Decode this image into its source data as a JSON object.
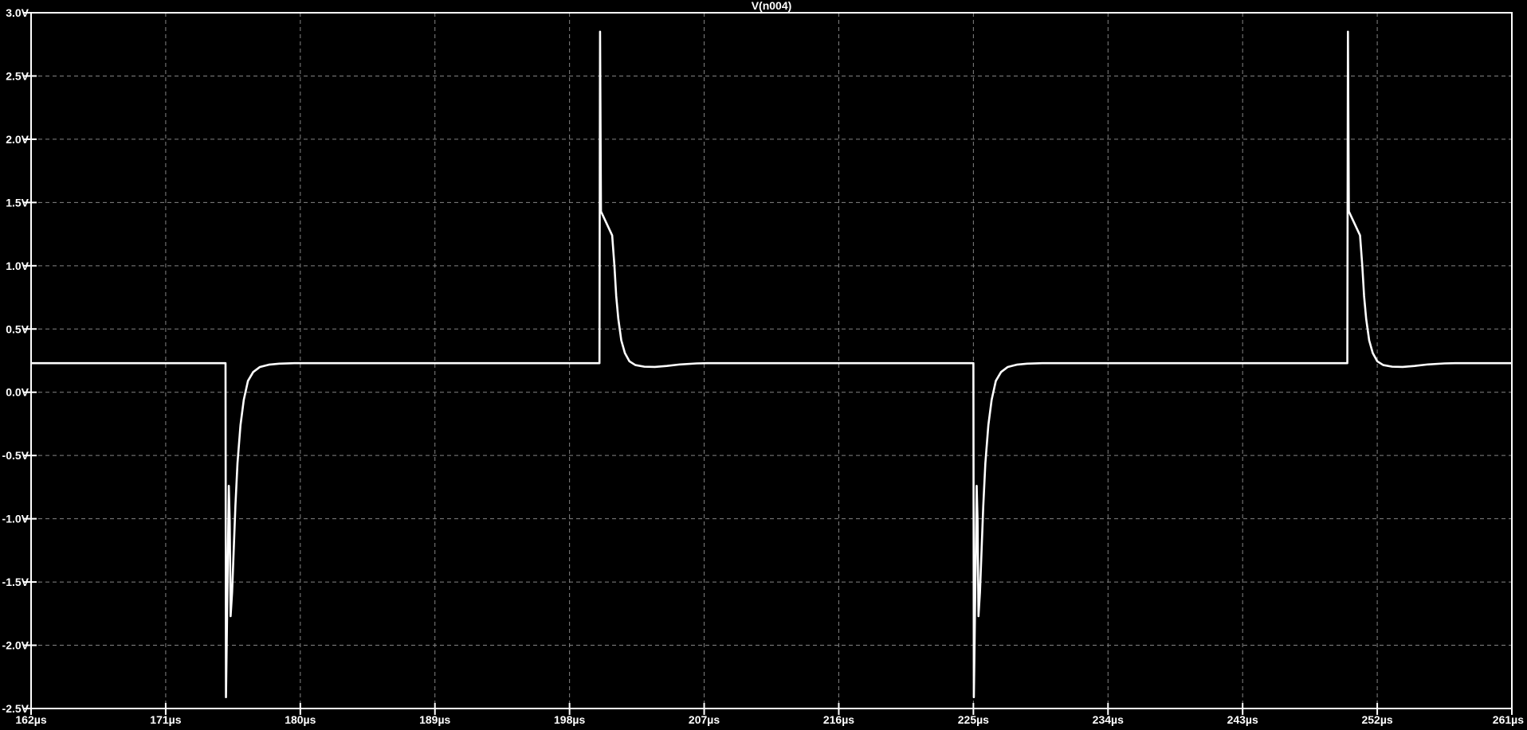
{
  "window": {
    "legend_title": "V(n004)"
  },
  "colors": {
    "background": "#000000",
    "border": "#ffffff",
    "grid": "#848484",
    "text": "#ffffff",
    "trace": "#ffffff"
  },
  "chart_data": {
    "type": "line",
    "title": "V(n004)",
    "grid": "dashed",
    "legend_position": "top-center",
    "x_unit": "µs",
    "y_unit": "V",
    "xlim": [
      162,
      261
    ],
    "ylim": [
      -2.5,
      3.0
    ],
    "x_tick_values": [
      162,
      171,
      180,
      189,
      198,
      207,
      216,
      225,
      234,
      243,
      252,
      261
    ],
    "x_tick_labels": [
      "162µs",
      "171µs",
      "180µs",
      "189µs",
      "198µs",
      "207µs",
      "216µs",
      "225µs",
      "234µs",
      "243µs",
      "252µs",
      "261µs"
    ],
    "y_tick_values": [
      3.0,
      2.5,
      2.0,
      1.5,
      1.0,
      0.5,
      0.0,
      -0.5,
      -1.0,
      -1.5,
      -2.0,
      -2.5
    ],
    "y_tick_labels": [
      "3.0V",
      "2.5V",
      "2.0V",
      "1.5V",
      "1.0V",
      "0.5V",
      "0.0V",
      "-0.5V",
      "-1.0V",
      "-1.5V",
      "-2.0V",
      "-2.5V"
    ],
    "baseline_v": 0.23,
    "negative_spike_times_us": [
      175,
      225
    ],
    "positive_spike_times_us": [
      200,
      250
    ],
    "negative_peak_v": -2.41,
    "positive_peak_v": 2.85,
    "series": [
      {
        "name": "V(n004)",
        "color": "#ffffff",
        "points": [
          [
            162.0,
            0.23
          ],
          [
            175.0,
            0.23
          ],
          [
            175.03,
            -2.41
          ],
          [
            175.22,
            -0.74
          ],
          [
            175.28,
            -1.02
          ],
          [
            175.34,
            -1.77
          ],
          [
            175.44,
            -1.58
          ],
          [
            175.54,
            -1.27
          ],
          [
            175.66,
            -0.9
          ],
          [
            175.8,
            -0.56
          ],
          [
            176.0,
            -0.26
          ],
          [
            176.22,
            -0.06
          ],
          [
            176.5,
            0.09
          ],
          [
            176.85,
            0.16
          ],
          [
            177.3,
            0.2
          ],
          [
            177.9,
            0.218
          ],
          [
            178.6,
            0.226
          ],
          [
            179.6,
            0.23
          ],
          [
            200.0,
            0.23
          ],
          [
            200.04,
            2.85
          ],
          [
            200.1,
            1.43
          ],
          [
            200.85,
            1.24
          ],
          [
            201.0,
            1.0
          ],
          [
            201.12,
            0.76
          ],
          [
            201.26,
            0.58
          ],
          [
            201.46,
            0.41
          ],
          [
            201.7,
            0.31
          ],
          [
            202.0,
            0.245
          ],
          [
            202.4,
            0.215
          ],
          [
            203.0,
            0.202
          ],
          [
            203.7,
            0.2
          ],
          [
            204.5,
            0.208
          ],
          [
            205.4,
            0.22
          ],
          [
            206.5,
            0.228
          ],
          [
            207.2,
            0.23
          ],
          [
            225.0,
            0.23
          ],
          [
            225.03,
            -2.41
          ],
          [
            225.22,
            -0.74
          ],
          [
            225.28,
            -1.02
          ],
          [
            225.34,
            -1.77
          ],
          [
            225.44,
            -1.58
          ],
          [
            225.54,
            -1.27
          ],
          [
            225.66,
            -0.9
          ],
          [
            225.8,
            -0.56
          ],
          [
            226.0,
            -0.26
          ],
          [
            226.22,
            -0.06
          ],
          [
            226.5,
            0.09
          ],
          [
            226.85,
            0.16
          ],
          [
            227.3,
            0.2
          ],
          [
            227.9,
            0.218
          ],
          [
            228.6,
            0.226
          ],
          [
            229.6,
            0.23
          ],
          [
            250.0,
            0.23
          ],
          [
            250.04,
            2.85
          ],
          [
            250.1,
            1.43
          ],
          [
            250.85,
            1.24
          ],
          [
            251.0,
            1.0
          ],
          [
            251.12,
            0.76
          ],
          [
            251.26,
            0.58
          ],
          [
            251.46,
            0.41
          ],
          [
            251.7,
            0.31
          ],
          [
            252.0,
            0.245
          ],
          [
            252.4,
            0.215
          ],
          [
            253.0,
            0.202
          ],
          [
            253.7,
            0.2
          ],
          [
            254.5,
            0.208
          ],
          [
            255.4,
            0.22
          ],
          [
            256.5,
            0.228
          ],
          [
            257.2,
            0.23
          ],
          [
            261.0,
            0.23
          ]
        ]
      }
    ]
  }
}
